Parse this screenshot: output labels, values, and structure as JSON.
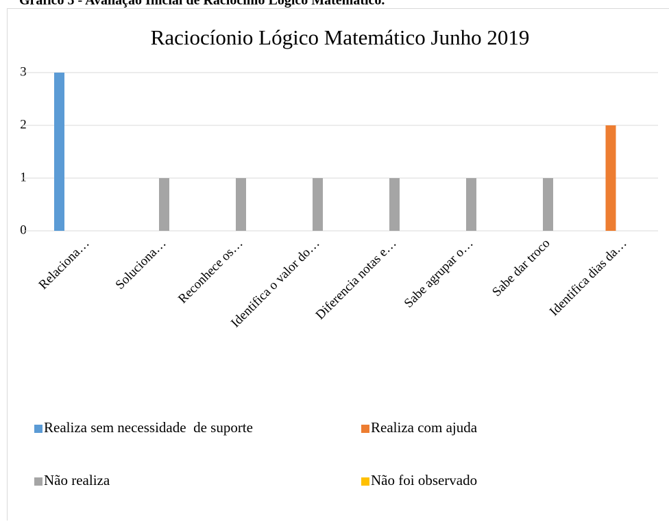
{
  "caption": "Gráfico 5 - Avaliação Inicial de Raciocínio Lógico Matemático.",
  "chart_data": {
    "type": "bar",
    "title": "Raciocíonio Lógico Matemático Junho 2019",
    "categories": [
      "Relaciona…",
      "Soluciona…",
      "Reconhece os…",
      "Identifica o valor do…",
      "Diferencia notas e…",
      "Sabe agrupar o…",
      "Sabe dar troco",
      "Identifica dias da…"
    ],
    "series": [
      {
        "name": "Realiza sem necessidade  de suporte",
        "color": "#5b9bd5",
        "values": [
          3,
          0,
          0,
          0,
          0,
          0,
          0,
          0
        ]
      },
      {
        "name": "Realiza com ajuda",
        "color": "#ed7d31",
        "values": [
          0,
          0,
          0,
          0,
          0,
          0,
          0,
          2
        ]
      },
      {
        "name": "Não realiza",
        "color": "#a5a5a5",
        "values": [
          0,
          1,
          1,
          1,
          1,
          1,
          1,
          0
        ]
      },
      {
        "name": "Não foi observado",
        "color": "#ffc000",
        "values": [
          0,
          0,
          0,
          0,
          0,
          0,
          0,
          0
        ]
      }
    ],
    "ylim": [
      0,
      3
    ],
    "yticks": [
      0,
      1,
      2,
      3
    ],
    "grid": true,
    "legend": "bottom"
  }
}
